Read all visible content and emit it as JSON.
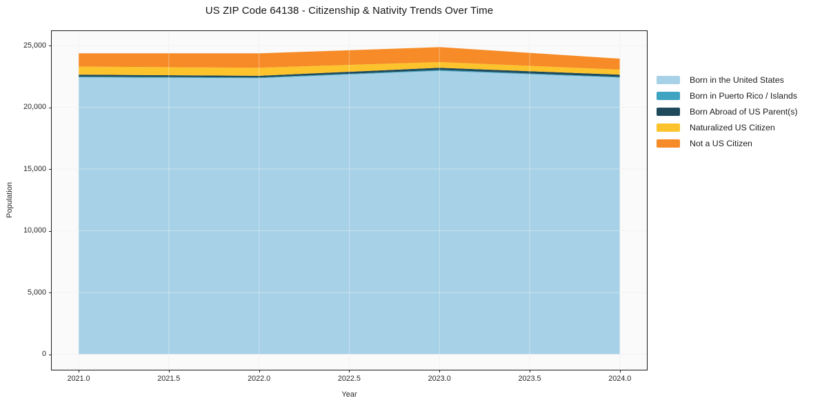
{
  "chart_data": {
    "type": "area",
    "stacked": true,
    "title": "US ZIP Code 64138 - Citizenship & Nativity Trends Over Time",
    "xlabel": "Year",
    "ylabel": "Population",
    "grid": true,
    "legend_position": "right-outside",
    "x": [
      2021,
      2022,
      2023,
      2024
    ],
    "x_tick_values": [
      2021.0,
      2021.5,
      2022.0,
      2022.5,
      2023.0,
      2023.5,
      2024.0
    ],
    "x_tick_labels": [
      "2021.0",
      "2021.5",
      "2022.0",
      "2022.5",
      "2023.0",
      "2023.5",
      "2024.0"
    ],
    "y_tick_values": [
      0,
      5000,
      10000,
      15000,
      20000,
      25000
    ],
    "y_tick_labels": [
      "0",
      "5,000",
      "10,000",
      "15,000",
      "20,000",
      "25,000"
    ],
    "xlim": [
      2020.85,
      2024.15
    ],
    "ylim": [
      -1250,
      26150
    ],
    "series": [
      {
        "name": "Born in the United States",
        "color": "#a7d1e6",
        "values": [
          22420,
          22360,
          22950,
          22400
        ]
      },
      {
        "name": "Born in Puerto Rico / Islands",
        "color": "#3fa3c2",
        "values": [
          60,
          50,
          70,
          60
        ]
      },
      {
        "name": "Born Abroad of US Parent(s)",
        "color": "#1f4a5c",
        "values": [
          160,
          140,
          180,
          180
        ]
      },
      {
        "name": "Naturalized US Citizen",
        "color": "#fcc32d",
        "values": [
          650,
          650,
          460,
          410
        ]
      },
      {
        "name": "Not a US Citizen",
        "color": "#f68b27",
        "values": [
          1080,
          1170,
          1210,
          890
        ]
      }
    ],
    "totals": [
      24370,
      24370,
      24870,
      23940
    ]
  },
  "colors": {
    "plot_background": "#fafafa",
    "grid_under": "#ececec",
    "grid_over": "rgba(255,255,255,0.38)",
    "spine": "#1a1a1a"
  }
}
